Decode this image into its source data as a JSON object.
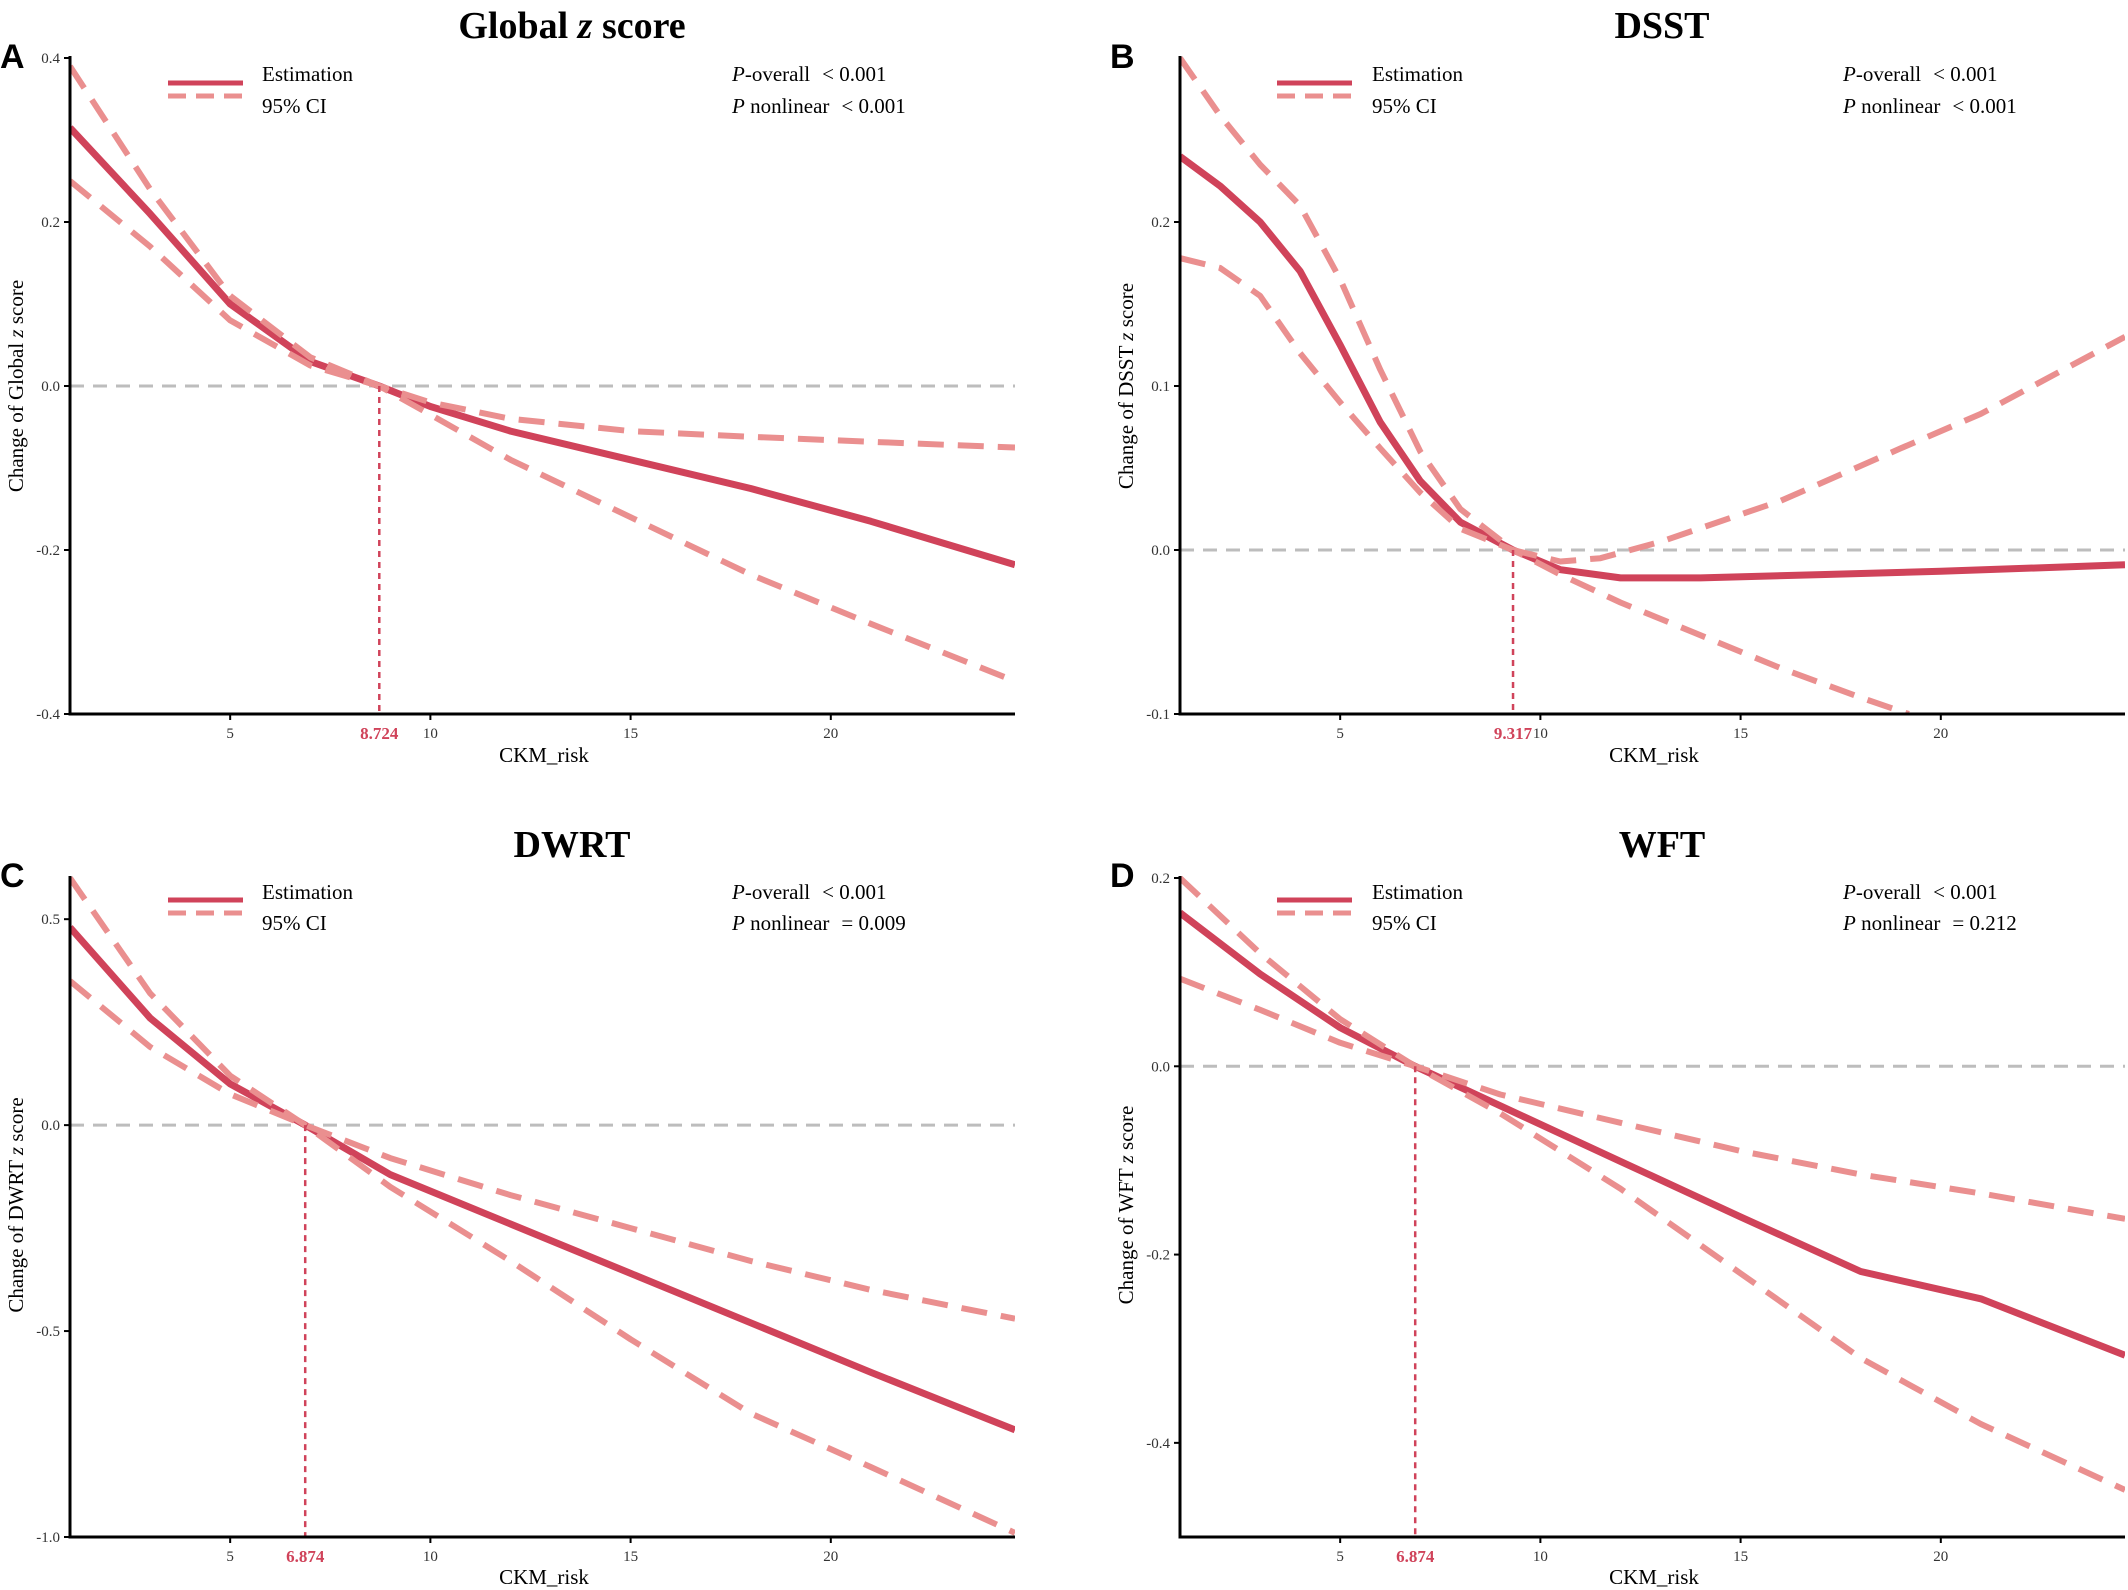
{
  "colors": {
    "estimate": "#d0435a",
    "ci": "#ea8f8f",
    "reference": "#bdbdbd",
    "threshold": "#d0435a",
    "axis": "#000000"
  },
  "legend": {
    "estimate_label": "Estimation",
    "ci_label": "95% CI"
  },
  "chart_data": [
    {
      "type": "line",
      "panel": "A",
      "title_main": "Global ",
      "title_italic": "z",
      "title_rest": " score",
      "xlabel": "CKM_risk",
      "ylabel_main": "Change of Global ",
      "ylabel_italic": "z",
      "ylabel_rest": " score",
      "xlim": [
        1,
        24.6
      ],
      "ylim": [
        -0.4,
        0.4
      ],
      "xticks": [
        5,
        10,
        15,
        20
      ],
      "yticks": [
        -0.4,
        -0.2,
        0.0,
        0.2,
        0.4
      ],
      "ytick_labels": [
        "-0.4",
        "-0.2",
        "0.0",
        "0.2",
        "0.4"
      ],
      "threshold": 8.724,
      "threshold_label": "8.724",
      "p_overall_label": "P",
      "p_overall_text": "-overall",
      "p_overall_value": "< 0.001",
      "p_nonlinear_label": "P",
      "p_nonlinear_text": " nonlinear",
      "p_nonlinear_value": "< 0.001",
      "series": [
        {
          "name": "Estimation",
          "role": "estimate",
          "x": [
            1,
            3,
            5,
            7,
            8.724,
            10,
            12,
            15,
            18,
            21,
            24.6
          ],
          "y": [
            0.315,
            0.21,
            0.1,
            0.03,
            0.0,
            -0.025,
            -0.055,
            -0.09,
            -0.125,
            -0.165,
            -0.218
          ]
        },
        {
          "name": "95% CI",
          "role": "ci",
          "x": [
            1,
            3,
            5,
            7,
            8.724,
            10,
            12,
            15,
            18,
            21,
            24.6
          ],
          "y": [
            0.39,
            0.24,
            0.11,
            0.035,
            0.0,
            -0.035,
            -0.09,
            -0.16,
            -0.23,
            -0.29,
            -0.36
          ]
        },
        {
          "name": "95% CI",
          "role": "ci",
          "x": [
            1,
            3,
            5,
            7,
            8.724,
            10,
            12,
            15,
            18,
            21,
            24.6
          ],
          "y": [
            0.25,
            0.17,
            0.08,
            0.025,
            0.0,
            -0.02,
            -0.04,
            -0.055,
            -0.062,
            -0.068,
            -0.075
          ]
        }
      ]
    },
    {
      "type": "line",
      "panel": "B",
      "title_main": "DSST",
      "title_italic": "",
      "title_rest": "",
      "xlabel": "CKM_risk",
      "ylabel_main": "Change of  DSST ",
      "ylabel_italic": "z",
      "ylabel_rest": " score",
      "xlim": [
        1,
        24.6
      ],
      "ylim": [
        -0.1,
        0.3
      ],
      "xticks": [
        5,
        10,
        15,
        20
      ],
      "yticks": [
        -0.1,
        0.0,
        0.1,
        0.2
      ],
      "ytick_labels": [
        "-0.1",
        "0.0",
        "0.1",
        "0.2"
      ],
      "threshold": 9.317,
      "threshold_label": "9.317",
      "p_overall_label": "P",
      "p_overall_text": "-overall",
      "p_overall_value": "< 0.001",
      "p_nonlinear_label": "P",
      "p_nonlinear_text": " nonlinear",
      "p_nonlinear_value": "< 0.001",
      "series": [
        {
          "name": "Estimation",
          "role": "estimate",
          "x": [
            1,
            2,
            3,
            4,
            5,
            6,
            7,
            8,
            9.317,
            10.5,
            12,
            14,
            17,
            20,
            24.6
          ],
          "y": [
            0.24,
            0.222,
            0.2,
            0.17,
            0.125,
            0.078,
            0.042,
            0.017,
            0.0,
            -0.012,
            -0.017,
            -0.017,
            -0.015,
            -0.013,
            -0.009
          ]
        },
        {
          "name": "95% CI",
          "role": "ci",
          "x": [
            1,
            2,
            3,
            4,
            5,
            6,
            7,
            8,
            9.317,
            10.5,
            11.5,
            13,
            16,
            19,
            21,
            24.6
          ],
          "y": [
            0.3,
            0.265,
            0.235,
            0.21,
            0.165,
            0.11,
            0.06,
            0.025,
            0.0,
            -0.007,
            -0.005,
            0.005,
            0.03,
            0.062,
            0.083,
            0.13
          ]
        },
        {
          "name": "95% CI",
          "role": "ci",
          "x": [
            1,
            2,
            3,
            4,
            5,
            6,
            7,
            8,
            9.317,
            10.5,
            12,
            14,
            16,
            18,
            19.2
          ],
          "y": [
            0.178,
            0.172,
            0.155,
            0.12,
            0.09,
            0.062,
            0.035,
            0.013,
            0.0,
            -0.015,
            -0.032,
            -0.052,
            -0.072,
            -0.09,
            -0.1
          ]
        }
      ]
    },
    {
      "type": "line",
      "panel": "C",
      "title_main": "DWRT",
      "title_italic": "",
      "title_rest": "",
      "xlabel": "CKM_risk",
      "ylabel_main": "Change of  DWRT ",
      "ylabel_italic": "z",
      "ylabel_rest": " score",
      "xlim": [
        1,
        24.6
      ],
      "ylim": [
        -1.0,
        0.6
      ],
      "xticks": [
        5,
        10,
        15,
        20
      ],
      "yticks": [
        -1.0,
        -0.5,
        0.0,
        0.5
      ],
      "ytick_labels": [
        "-1.0",
        "-0.5",
        "0.0",
        "0.5"
      ],
      "threshold": 6.874,
      "threshold_label": "6.874",
      "p_overall_label": "P",
      "p_overall_text": "-overall",
      "p_overall_value": "< 0.001",
      "p_nonlinear_label": "P",
      "p_nonlinear_text": " nonlinear",
      "p_nonlinear_value": "= 0.009",
      "series": [
        {
          "name": "Estimation",
          "role": "estimate",
          "x": [
            1,
            3,
            5,
            6.874,
            9,
            12,
            15,
            18,
            21,
            24.6
          ],
          "y": [
            0.48,
            0.26,
            0.1,
            0.0,
            -0.12,
            -0.24,
            -0.36,
            -0.48,
            -0.6,
            -0.74
          ]
        },
        {
          "name": "95% CI",
          "role": "ci",
          "x": [
            1,
            3,
            5,
            6.874,
            9,
            12,
            15,
            18,
            21,
            24.6
          ],
          "y": [
            0.6,
            0.32,
            0.12,
            0.0,
            -0.15,
            -0.33,
            -0.52,
            -0.7,
            -0.83,
            -0.99
          ]
        },
        {
          "name": "95% CI",
          "role": "ci",
          "x": [
            1,
            3,
            5,
            6.874,
            9,
            12,
            15,
            18,
            21,
            24.6
          ],
          "y": [
            0.35,
            0.19,
            0.075,
            0.0,
            -0.08,
            -0.17,
            -0.25,
            -0.33,
            -0.4,
            -0.47
          ]
        }
      ]
    },
    {
      "type": "line",
      "panel": "D",
      "title_main": "WFT",
      "title_italic": "",
      "title_rest": "",
      "xlabel": "CKM_risk",
      "ylabel_main": "Change of  WFT ",
      "ylabel_italic": "z",
      "ylabel_rest": " score",
      "xlim": [
        1,
        24.6
      ],
      "ylim": [
        -0.5,
        0.2
      ],
      "xticks": [
        5,
        10,
        15,
        20
      ],
      "yticks": [
        -0.4,
        -0.2,
        0.0,
        0.2
      ],
      "ytick_labels": [
        "-0.4",
        "-0.2",
        "0.0",
        "0.2"
      ],
      "threshold": 6.874,
      "threshold_label": "6.874",
      "p_overall_label": "P",
      "p_overall_text": "-overall",
      "p_overall_value": "< 0.001",
      "p_nonlinear_label": "P",
      "p_nonlinear_text": " nonlinear",
      "p_nonlinear_value": "= 0.212",
      "series": [
        {
          "name": "Estimation",
          "role": "estimate",
          "x": [
            1,
            3,
            5,
            6.874,
            9,
            12,
            15,
            18,
            21,
            24.6
          ],
          "y": [
            0.163,
            0.098,
            0.041,
            0.0,
            -0.042,
            -0.101,
            -0.16,
            -0.218,
            -0.247,
            -0.307
          ]
        },
        {
          "name": "95% CI",
          "role": "ci",
          "x": [
            1,
            3,
            5,
            6.874,
            9,
            12,
            15,
            18,
            21,
            24.6
          ],
          "y": [
            0.2,
            0.12,
            0.05,
            0.0,
            -0.05,
            -0.13,
            -0.22,
            -0.31,
            -0.38,
            -0.45
          ]
        },
        {
          "name": "95% CI",
          "role": "ci",
          "x": [
            1,
            3,
            5,
            6.874,
            9,
            12,
            15,
            18,
            21,
            24.6
          ],
          "y": [
            0.093,
            0.06,
            0.025,
            0.0,
            -0.03,
            -0.06,
            -0.09,
            -0.115,
            -0.135,
            -0.162
          ]
        }
      ]
    }
  ]
}
